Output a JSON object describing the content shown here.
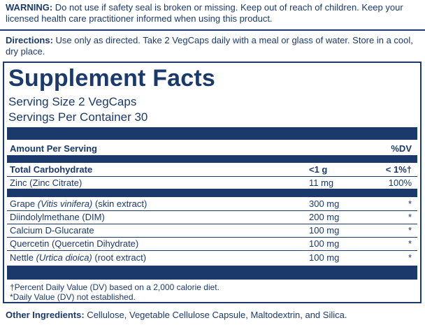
{
  "warning": {
    "label": "WARNING:",
    "text": " Do not use if safety seal is broken or missing. Keep out of reach of children. Keep your licensed health care practitioner informed when using this product."
  },
  "directions": {
    "label": "Directions:",
    "text": " Use only as directed. Take 2 VegCaps daily with a meal or glass of water. Store in a cool, dry place."
  },
  "facts": {
    "title": "Supplement Facts",
    "serving_size": "Serving Size 2 VegCaps",
    "servings_per": "Servings Per Container 30",
    "header_left": "Amount Per Serving",
    "header_right": "%DV",
    "rows": [
      {
        "pre": "Total Carbohydrate",
        "latin": "",
        "post": "",
        "amount": "<1 g",
        "dv": "< 1%†"
      },
      {
        "pre": "Zinc (Zinc Citrate)",
        "latin": "",
        "post": "",
        "amount": "11 mg",
        "dv": "100%"
      },
      {
        "pre": "Grape ",
        "latin": "(Vitis vinifera)",
        "post": " (skin extract)",
        "amount": "300 mg",
        "dv": "*"
      },
      {
        "pre": "Diindolylmethane (DIM)",
        "latin": "",
        "post": "",
        "amount": "200 mg",
        "dv": "*"
      },
      {
        "pre": "Calcium D-Glucarate",
        "latin": "",
        "post": "",
        "amount": "100 mg",
        "dv": "*"
      },
      {
        "pre": "Quercetin (Quercetin Dihydrate)",
        "latin": "",
        "post": "",
        "amount": "100 mg",
        "dv": "*"
      },
      {
        "pre": "Nettle ",
        "latin": "(Urtica dioica)",
        "post": " (root extract)",
        "amount": "100 mg",
        "dv": "*"
      }
    ],
    "footnote_1": "†Percent Daily Value (DV) based on a 2,000 calorie diet.",
    "footnote_2": "*Daily Value (DV) not established."
  },
  "other_ingredients": {
    "label": "Other Ingredients:",
    "text": " Cellulose, Vegetable Cellulose Capsule, Maltodextrin, and Silica."
  }
}
